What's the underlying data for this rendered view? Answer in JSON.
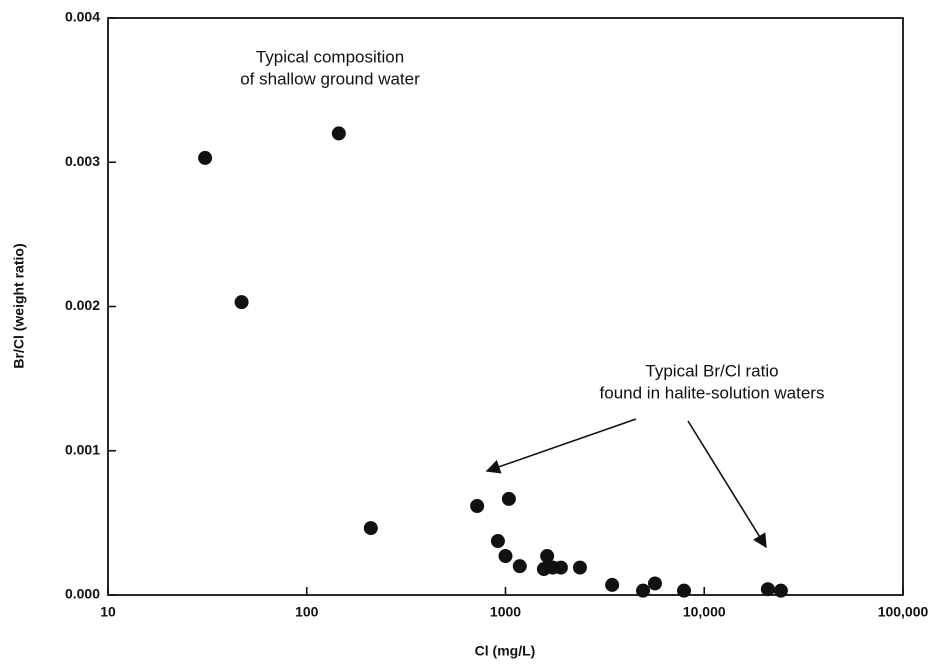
{
  "chart_data": {
    "type": "scatter",
    "x_label": "Cl (mg/L)",
    "y_label": "Br/Cl (weight ratio)",
    "x": [
      30.8,
      145,
      47,
      210,
      720,
      1040,
      916,
      1000,
      1180,
      1620,
      1560,
      1730,
      1900,
      2370,
      3440,
      4920,
      5650,
      7910,
      20900,
      24300
    ],
    "values": [
      0.00303,
      0.0032,
      0.00203,
      0.000464,
      0.000617,
      0.000666,
      0.000374,
      0.00027,
      0.0002,
      0.00027,
      0.00018,
      0.00019,
      0.00019,
      0.00019,
      7e-05,
      3e-05,
      8e-05,
      3e-05,
      4e-05,
      3e-05
    ],
    "color": "#111111",
    "xlog": true,
    "xlim": [
      10,
      100000
    ],
    "xticks": [
      10,
      100,
      1000,
      {
        "value": 10000,
        "label": "10,000"
      },
      {
        "value": 100000,
        "label": "100,000"
      }
    ],
    "ylim": [
      0,
      0.004
    ],
    "yticks": [
      {
        "value": 0,
        "label": "0.000"
      },
      0.001,
      0.002,
      0.003,
      0.004
    ],
    "annotations": [
      {
        "lines": [
          "Typical composition",
          "of shallow ground water"
        ]
      },
      {
        "lines": [
          "Typical Br/Cl ratio",
          "found in halite-solution waters"
        ]
      }
    ]
  }
}
